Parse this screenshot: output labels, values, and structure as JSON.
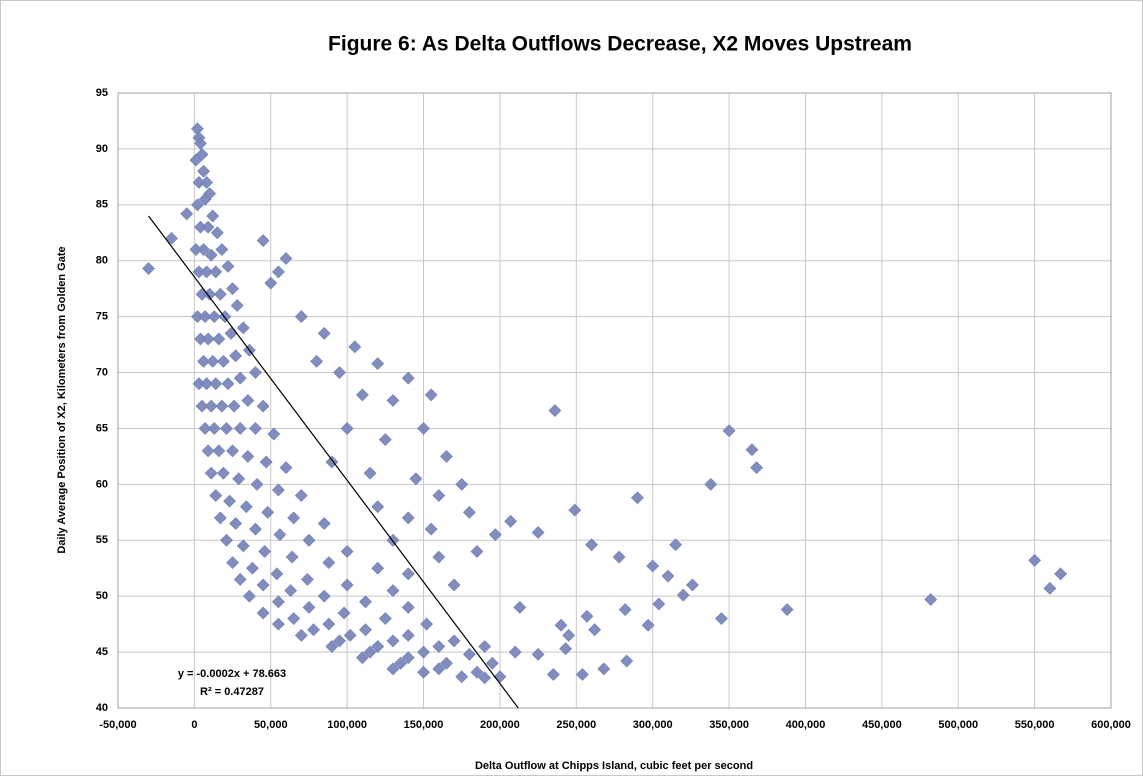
{
  "chart_data": {
    "type": "scatter",
    "title": "Figure 6: As Delta Outflows Decrease, X2 Moves Upstream",
    "x_label": "Delta Outflow at Chipps Island, cubic feet per second",
    "y_label": "Daily Average Position of X2, Kilometers from Golden Gate",
    "color": "#7a87b9",
    "grid": true,
    "xlim": [
      -50000,
      600000
    ],
    "ylim": [
      40,
      95
    ],
    "xticks": [
      {
        "value": -50000,
        "label": "-50,000"
      },
      0,
      {
        "value": 50000,
        "label": "50,000"
      },
      {
        "value": 100000,
        "label": "100,000"
      },
      {
        "value": 150000,
        "label": "150,000"
      },
      {
        "value": 200000,
        "label": "200,000"
      },
      {
        "value": 250000,
        "label": "250,000"
      },
      {
        "value": 300000,
        "label": "300,000"
      },
      {
        "value": 350000,
        "label": "350,000"
      },
      {
        "value": 400000,
        "label": "400,000"
      },
      {
        "value": 450000,
        "label": "450,000"
      },
      {
        "value": 500000,
        "label": "500,000"
      },
      {
        "value": 550000,
        "label": "550,000"
      },
      {
        "value": 600000,
        "label": "600,000"
      }
    ],
    "yticks": [
      40,
      45,
      50,
      55,
      60,
      65,
      70,
      75,
      80,
      85,
      90,
      95
    ],
    "x": [
      2000,
      3000,
      4000,
      1000,
      5000,
      6000,
      3000,
      8000,
      2000,
      7000,
      10000,
      12000,
      4000,
      9000,
      15000,
      1000,
      6000,
      11000,
      18000,
      3000,
      8000,
      14000,
      22000,
      5000,
      10000,
      17000,
      25000,
      2000,
      7000,
      13000,
      20000,
      28000,
      4000,
      9000,
      16000,
      24000,
      32000,
      6000,
      12000,
      19000,
      27000,
      36000,
      3000,
      8000,
      14000,
      22000,
      30000,
      40000,
      5000,
      11000,
      18000,
      26000,
      35000,
      45000,
      7000,
      13000,
      21000,
      30000,
      40000,
      52000,
      9000,
      16000,
      25000,
      35000,
      47000,
      60000,
      11000,
      19000,
      29000,
      41000,
      55000,
      70000,
      14000,
      23000,
      34000,
      48000,
      65000,
      85000,
      17000,
      27000,
      40000,
      56000,
      75000,
      100000,
      21000,
      32000,
      46000,
      64000,
      88000,
      120000,
      25000,
      38000,
      54000,
      74000,
      100000,
      130000,
      30000,
      45000,
      63000,
      85000,
      112000,
      140000,
      36000,
      55000,
      75000,
      98000,
      125000,
      152000,
      45000,
      65000,
      88000,
      112000,
      140000,
      170000,
      55000,
      78000,
      102000,
      130000,
      160000,
      190000,
      70000,
      95000,
      120000,
      150000,
      180000,
      210000,
      90000,
      115000,
      140000,
      165000,
      195000,
      225000,
      110000,
      135000,
      160000,
      185000,
      200000,
      130000,
      150000,
      175000,
      190000,
      60000,
      45000,
      55000,
      50000,
      70000,
      85000,
      105000,
      120000,
      80000,
      95000,
      140000,
      110000,
      130000,
      155000,
      100000,
      125000,
      150000,
      90000,
      115000,
      145000,
      165000,
      120000,
      140000,
      160000,
      175000,
      130000,
      155000,
      180000,
      160000,
      185000,
      140000,
      170000,
      -30000,
      -15000,
      -5000,
      550000,
      560000,
      567000,
      482000,
      388000,
      345000,
      350000,
      365000,
      368000,
      338000,
      290000,
      300000,
      297000,
      310000,
      315000,
      320000,
      326000,
      304000,
      282000,
      278000,
      283000,
      268000,
      262000,
      260000,
      257000,
      249000,
      236000,
      225000,
      207000,
      197000,
      254000,
      235000,
      213000,
      240000,
      245000,
      243000
    ],
    "values": [
      91.8,
      91,
      90.5,
      89,
      89.5,
      88,
      87,
      87,
      85,
      85.5,
      86,
      84,
      83,
      83,
      82.5,
      81,
      81,
      80.5,
      81,
      79,
      79,
      79,
      79.5,
      77,
      77,
      77,
      77.5,
      75,
      75,
      75,
      75,
      76,
      73,
      73,
      73,
      73.5,
      74,
      71,
      71,
      71,
      71.5,
      72,
      69,
      69,
      69,
      69,
      69.5,
      70,
      67,
      67,
      67,
      67,
      67.5,
      67,
      65,
      65,
      65,
      65,
      65,
      64.5,
      63,
      63,
      63,
      62.5,
      62,
      61.5,
      61,
      61,
      60.5,
      60,
      59.5,
      59,
      59,
      58.5,
      58,
      57.5,
      57,
      56.5,
      57,
      56.5,
      56,
      55.5,
      55,
      54,
      55,
      54.5,
      54,
      53.5,
      53,
      52.5,
      53,
      52.5,
      52,
      51.5,
      51,
      50.5,
      51.5,
      51,
      50.5,
      50,
      49.5,
      49,
      50,
      49.5,
      49,
      48.5,
      48,
      47.5,
      48.5,
      48,
      47.5,
      47,
      46.5,
      46,
      47.5,
      47,
      46.5,
      46,
      45.5,
      45.5,
      46.5,
      46,
      45.5,
      45,
      44.8,
      45,
      45.5,
      45,
      44.5,
      44,
      44,
      44.8,
      44.5,
      44,
      43.5,
      43.2,
      42.8,
      43.5,
      43.2,
      42.8,
      42.7,
      80.2,
      81.8,
      79,
      78,
      75,
      73.5,
      72.3,
      70.8,
      71,
      70,
      69.5,
      68,
      67.5,
      68,
      65,
      64,
      65,
      62,
      61,
      60.5,
      62.5,
      58,
      57,
      59,
      60,
      55,
      56,
      57.5,
      53.5,
      54,
      52,
      51,
      79.3,
      82,
      84.2,
      53.2,
      50.7,
      52,
      49.7,
      48.8,
      48,
      64.8,
      63.1,
      61.5,
      60,
      58.8,
      52.7,
      47.4,
      51.8,
      54.6,
      50.1,
      51,
      49.3,
      48.8,
      53.5,
      44.2,
      43.5,
      47,
      54.6,
      48.2,
      57.7,
      66.6,
      55.7,
      56.7,
      55.5,
      43,
      43,
      49,
      47.4,
      46.5,
      45.3
    ],
    "trendline": {
      "color": "#000000",
      "x": [
        -30000,
        212000
      ],
      "y": [
        84,
        40
      ],
      "equation": "y = -0.0002x + 78.663",
      "r2": "R² = 0.47287"
    }
  }
}
